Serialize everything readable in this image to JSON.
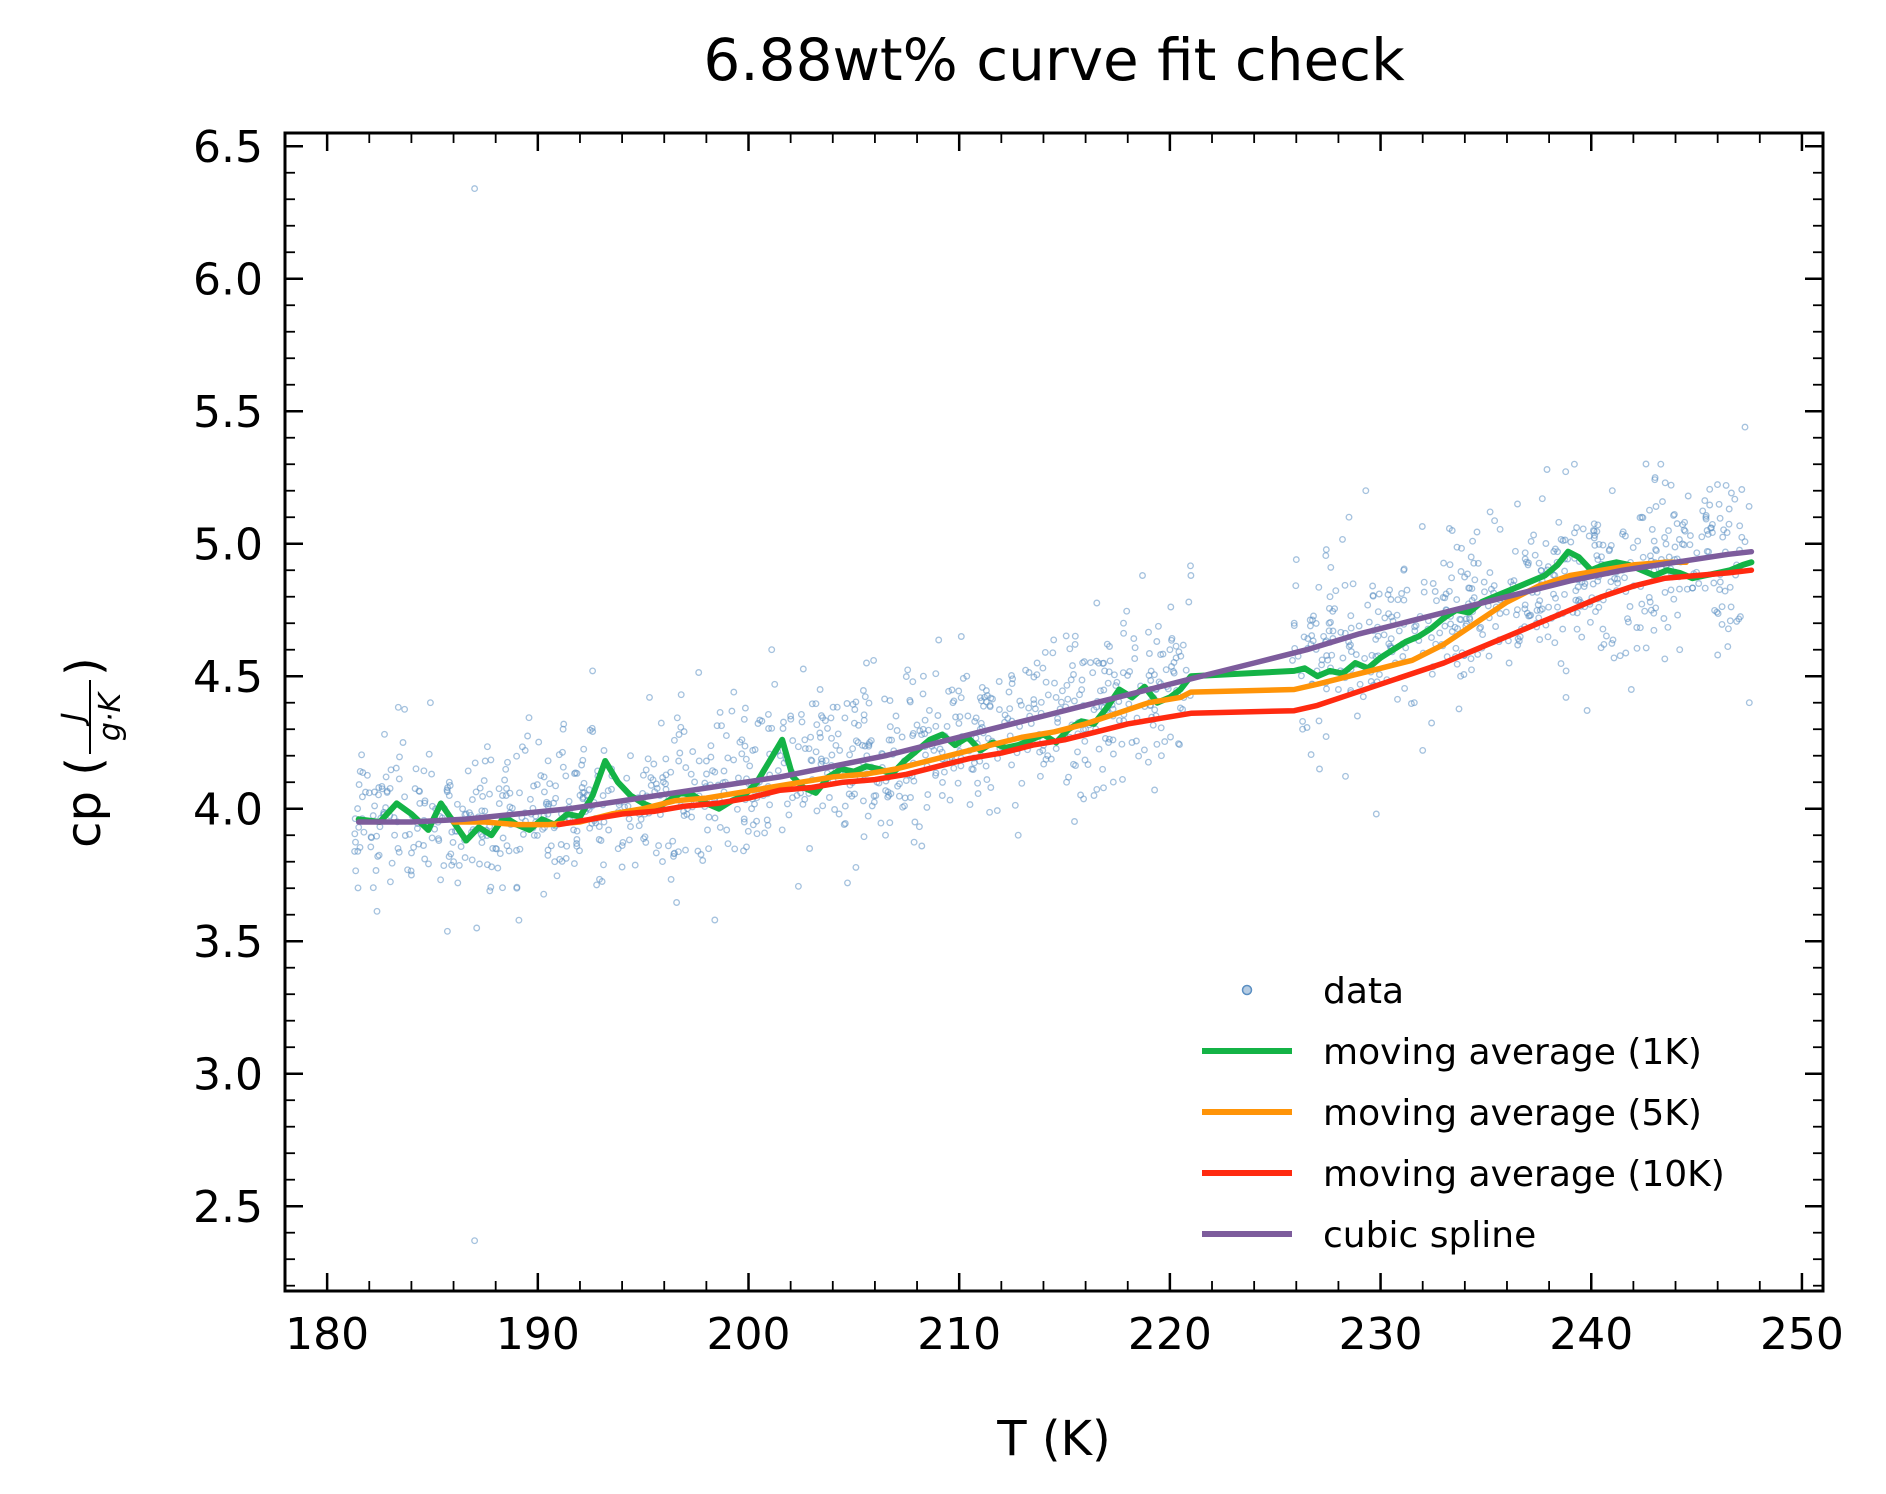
{
  "chart_data": {
    "type": "scatter",
    "title": "6.88wt% curve fit check",
    "xlabel": "T (K)",
    "ylabel": {
      "prefix": "cp (",
      "numerator": "J",
      "denominator": "g·K",
      "suffix": ")"
    },
    "xlim": [
      178,
      251
    ],
    "ylim": [
      2.18,
      6.55
    ],
    "xticks": [
      180,
      190,
      200,
      210,
      220,
      230,
      240,
      250
    ],
    "yticks": [
      2.5,
      3.0,
      3.5,
      4.0,
      4.5,
      5.0,
      5.5,
      6.0,
      6.5
    ],
    "xticklabels": [
      "180",
      "190",
      "200",
      "210",
      "220",
      "230",
      "240",
      "250"
    ],
    "yticklabels": [
      "2.5",
      "3.0",
      "3.5",
      "4.0",
      "4.5",
      "5.0",
      "5.5",
      "6.0",
      "6.5"
    ],
    "grid": false,
    "legend_position": "bottom-right",
    "scatter_series": {
      "name": "data",
      "color": "#5b8fc2",
      "x_range": [
        181.3,
        247.6
      ],
      "gap": [
        221.0,
        225.8
      ],
      "noise_sd": 0.15,
      "points": [
        {
          "x": 181.5,
          "y": 3.93
        },
        {
          "x": 182.0,
          "y": 4.06
        },
        {
          "x": 182.4,
          "y": 3.82
        },
        {
          "x": 182.8,
          "y": 4.12
        },
        {
          "x": 183.2,
          "y": 3.9
        },
        {
          "x": 183.6,
          "y": 4.25
        },
        {
          "x": 184.0,
          "y": 3.75
        },
        {
          "x": 184.4,
          "y": 4.02
        },
        {
          "x": 184.9,
          "y": 4.4
        },
        {
          "x": 185.3,
          "y": 3.88
        },
        {
          "x": 185.8,
          "y": 4.1
        },
        {
          "x": 186.2,
          "y": 3.72
        },
        {
          "x": 186.6,
          "y": 3.98
        },
        {
          "x": 187.0,
          "y": 6.34
        },
        {
          "x": 187.0,
          "y": 2.37
        },
        {
          "x": 187.1,
          "y": 3.55
        },
        {
          "x": 187.5,
          "y": 4.18
        },
        {
          "x": 188.0,
          "y": 3.85
        },
        {
          "x": 188.5,
          "y": 4.05
        },
        {
          "x": 189.0,
          "y": 3.7
        },
        {
          "x": 189.4,
          "y": 4.22
        },
        {
          "x": 189.9,
          "y": 3.95
        },
        {
          "x": 190.3,
          "y": 4.12
        },
        {
          "x": 190.8,
          "y": 3.8
        },
        {
          "x": 191.2,
          "y": 4.3
        },
        {
          "x": 191.7,
          "y": 3.92
        },
        {
          "x": 192.1,
          "y": 4.08
        },
        {
          "x": 192.6,
          "y": 4.52
        },
        {
          "x": 193.0,
          "y": 3.88
        },
        {
          "x": 193.5,
          "y": 4.15
        },
        {
          "x": 194.0,
          "y": 3.78
        },
        {
          "x": 194.4,
          "y": 4.2
        },
        {
          "x": 194.9,
          "y": 3.96
        },
        {
          "x": 195.3,
          "y": 4.42
        },
        {
          "x": 195.8,
          "y": 4.05
        },
        {
          "x": 196.2,
          "y": 3.86
        },
        {
          "x": 196.7,
          "y": 4.28
        },
        {
          "x": 197.1,
          "y": 4.0
        },
        {
          "x": 197.6,
          "y": 3.84
        },
        {
          "x": 198.0,
          "y": 4.18
        },
        {
          "x": 198.4,
          "y": 3.58
        },
        {
          "x": 198.9,
          "y": 4.1
        },
        {
          "x": 199.3,
          "y": 4.44
        },
        {
          "x": 199.8,
          "y": 3.95
        },
        {
          "x": 200.2,
          "y": 4.22
        },
        {
          "x": 200.7,
          "y": 4.05
        },
        {
          "x": 201.1,
          "y": 4.6
        },
        {
          "x": 201.6,
          "y": 3.92
        },
        {
          "x": 202.0,
          "y": 4.35
        },
        {
          "x": 202.5,
          "y": 4.08
        },
        {
          "x": 202.9,
          "y": 3.85
        },
        {
          "x": 203.4,
          "y": 4.45
        },
        {
          "x": 203.8,
          "y": 4.12
        },
        {
          "x": 204.3,
          "y": 3.98
        },
        {
          "x": 204.7,
          "y": 3.72
        },
        {
          "x": 205.2,
          "y": 4.25
        },
        {
          "x": 205.6,
          "y": 4.55
        },
        {
          "x": 206.1,
          "y": 4.1
        },
        {
          "x": 206.5,
          "y": 3.9
        },
        {
          "x": 207.0,
          "y": 4.35
        },
        {
          "x": 207.4,
          "y": 4.18
        },
        {
          "x": 207.9,
          "y": 3.95
        },
        {
          "x": 208.3,
          "y": 4.5
        },
        {
          "x": 208.8,
          "y": 4.22
        },
        {
          "x": 209.2,
          "y": 4.05
        },
        {
          "x": 209.7,
          "y": 4.4
        },
        {
          "x": 210.1,
          "y": 4.65
        },
        {
          "x": 210.6,
          "y": 4.15
        },
        {
          "x": 211.0,
          "y": 4.3
        },
        {
          "x": 211.5,
          "y": 4.08
        },
        {
          "x": 211.9,
          "y": 4.48
        },
        {
          "x": 212.4,
          "y": 4.22
        },
        {
          "x": 212.8,
          "y": 3.9
        },
        {
          "x": 213.3,
          "y": 4.38
        },
        {
          "x": 213.7,
          "y": 4.55
        },
        {
          "x": 214.2,
          "y": 4.2
        },
        {
          "x": 214.6,
          "y": 4.42
        },
        {
          "x": 215.1,
          "y": 4.1
        },
        {
          "x": 215.5,
          "y": 4.62
        },
        {
          "x": 216.0,
          "y": 4.3
        },
        {
          "x": 216.4,
          "y": 4.05
        },
        {
          "x": 216.9,
          "y": 4.52
        },
        {
          "x": 217.3,
          "y": 4.35
        },
        {
          "x": 217.8,
          "y": 4.7
        },
        {
          "x": 218.2,
          "y": 4.25
        },
        {
          "x": 218.7,
          "y": 4.88
        },
        {
          "x": 219.1,
          "y": 4.45
        },
        {
          "x": 219.6,
          "y": 4.2
        },
        {
          "x": 220.0,
          "y": 4.6
        },
        {
          "x": 220.5,
          "y": 4.38
        },
        {
          "x": 220.9,
          "y": 4.78
        },
        {
          "x": 221.0,
          "y": 4.88
        },
        {
          "x": 225.9,
          "y": 4.7
        },
        {
          "x": 226.0,
          "y": 4.94
        },
        {
          "x": 226.3,
          "y": 4.3
        },
        {
          "x": 226.7,
          "y": 4.62
        },
        {
          "x": 227.1,
          "y": 4.15
        },
        {
          "x": 227.6,
          "y": 4.8
        },
        {
          "x": 228.0,
          "y": 4.45
        },
        {
          "x": 228.5,
          "y": 5.1
        },
        {
          "x": 228.9,
          "y": 4.35
        },
        {
          "x": 229.3,
          "y": 5.2
        },
        {
          "x": 229.8,
          "y": 3.98
        },
        {
          "x": 230.2,
          "y": 4.72
        },
        {
          "x": 230.7,
          "y": 4.55
        },
        {
          "x": 231.1,
          "y": 4.9
        },
        {
          "x": 231.6,
          "y": 4.4
        },
        {
          "x": 232.0,
          "y": 4.22
        },
        {
          "x": 232.5,
          "y": 4.85
        },
        {
          "x": 232.9,
          "y": 4.62
        },
        {
          "x": 233.4,
          "y": 5.05
        },
        {
          "x": 233.8,
          "y": 4.5
        },
        {
          "x": 234.3,
          "y": 4.95
        },
        {
          "x": 234.7,
          "y": 4.68
        },
        {
          "x": 235.2,
          "y": 5.12
        },
        {
          "x": 235.6,
          "y": 4.8
        },
        {
          "x": 236.1,
          "y": 4.55
        },
        {
          "x": 236.5,
          "y": 5.15
        },
        {
          "x": 237.0,
          "y": 4.92
        },
        {
          "x": 237.4,
          "y": 4.7
        },
        {
          "x": 237.9,
          "y": 5.28
        },
        {
          "x": 238.3,
          "y": 4.98
        },
        {
          "x": 238.8,
          "y": 4.42
        },
        {
          "x": 239.2,
          "y": 5.3
        },
        {
          "x": 239.7,
          "y": 4.85
        },
        {
          "x": 240.1,
          "y": 5.05
        },
        {
          "x": 240.6,
          "y": 4.62
        },
        {
          "x": 241.0,
          "y": 5.2
        },
        {
          "x": 241.5,
          "y": 4.9
        },
        {
          "x": 241.9,
          "y": 4.45
        },
        {
          "x": 242.4,
          "y": 5.1
        },
        {
          "x": 242.8,
          "y": 4.78
        },
        {
          "x": 243.3,
          "y": 5.3
        },
        {
          "x": 243.7,
          "y": 4.95
        },
        {
          "x": 244.2,
          "y": 4.6
        },
        {
          "x": 244.6,
          "y": 5.18
        },
        {
          "x": 245.1,
          "y": 4.85
        },
        {
          "x": 245.5,
          "y": 5.05
        },
        {
          "x": 246.0,
          "y": 4.58
        },
        {
          "x": 246.4,
          "y": 5.22
        },
        {
          "x": 246.9,
          "y": 4.92
        },
        {
          "x": 247.3,
          "y": 5.44
        },
        {
          "x": 247.5,
          "y": 4.4
        }
      ]
    },
    "series": [
      {
        "name": "moving average (1K)",
        "color": "#14b346",
        "x": [
          181.5,
          182.5,
          183.3,
          184.0,
          184.8,
          185.4,
          186.0,
          186.6,
          187.2,
          187.8,
          188.4,
          189.0,
          189.6,
          190.2,
          190.8,
          191.4,
          192.0,
          192.6,
          193.2,
          193.8,
          194.4,
          195.0,
          195.6,
          196.2,
          196.8,
          197.4,
          198.0,
          198.6,
          199.2,
          199.8,
          200.4,
          201.0,
          201.6,
          202.1,
          202.6,
          203.2,
          203.8,
          204.4,
          205.0,
          205.6,
          206.2,
          206.8,
          207.4,
          208.0,
          208.6,
          209.2,
          209.8,
          210.4,
          211.0,
          211.6,
          212.2,
          212.8,
          213.4,
          214.0,
          214.6,
          215.2,
          215.8,
          216.4,
          217.0,
          217.6,
          218.2,
          218.8,
          219.4,
          220.0,
          220.5,
          221.0,
          225.9,
          226.4,
          227.0,
          227.6,
          228.2,
          228.8,
          229.4,
          230.0,
          230.6,
          231.2,
          231.8,
          232.4,
          233.0,
          233.6,
          234.2,
          234.8,
          235.4,
          236.0,
          236.6,
          237.2,
          237.8,
          238.4,
          238.9,
          239.4,
          240.0,
          240.6,
          241.2,
          241.8,
          242.4,
          243.0,
          243.6,
          244.2,
          244.8,
          245.4,
          246.0,
          246.6,
          247.2,
          247.6
        ],
        "y": [
          3.96,
          3.95,
          4.02,
          3.98,
          3.92,
          4.02,
          3.95,
          3.88,
          3.93,
          3.9,
          3.97,
          3.94,
          3.92,
          3.96,
          3.94,
          3.98,
          3.97,
          4.05,
          4.18,
          4.1,
          4.05,
          4.02,
          4.0,
          4.03,
          4.06,
          4.05,
          4.02,
          4.0,
          4.03,
          4.05,
          4.1,
          4.18,
          4.26,
          4.12,
          4.08,
          4.06,
          4.12,
          4.15,
          4.14,
          4.16,
          4.15,
          4.13,
          4.18,
          4.22,
          4.26,
          4.28,
          4.24,
          4.27,
          4.22,
          4.25,
          4.23,
          4.24,
          4.26,
          4.28,
          4.25,
          4.3,
          4.33,
          4.32,
          4.38,
          4.45,
          4.42,
          4.46,
          4.4,
          4.42,
          4.45,
          4.5,
          4.52,
          4.53,
          4.5,
          4.52,
          4.51,
          4.55,
          4.53,
          4.57,
          4.6,
          4.63,
          4.65,
          4.68,
          4.72,
          4.75,
          4.74,
          4.78,
          4.8,
          4.82,
          4.84,
          4.86,
          4.88,
          4.92,
          4.97,
          4.95,
          4.9,
          4.92,
          4.93,
          4.92,
          4.9,
          4.88,
          4.9,
          4.89,
          4.87,
          4.88,
          4.89,
          4.9,
          4.92,
          4.93
        ]
      },
      {
        "name": "moving average (5K)",
        "color": "#ff9408",
        "x": [
          186.0,
          187.5,
          189.0,
          190.5,
          192.0,
          193.5,
          195.0,
          196.5,
          198.0,
          199.5,
          201.0,
          202.5,
          204.0,
          205.5,
          207.0,
          208.5,
          210.0,
          211.5,
          213.0,
          214.5,
          216.0,
          217.5,
          219.0,
          220.5,
          221.0,
          225.9,
          227.0,
          228.5,
          230.0,
          231.5,
          233.0,
          234.5,
          236.0,
          237.5,
          239.0,
          240.5,
          242.0,
          243.5,
          244.5
        ],
        "y": [
          3.95,
          3.95,
          3.94,
          3.94,
          3.95,
          3.98,
          4.0,
          4.03,
          4.04,
          4.06,
          4.08,
          4.1,
          4.12,
          4.13,
          4.15,
          4.18,
          4.21,
          4.24,
          4.27,
          4.29,
          4.32,
          4.36,
          4.4,
          4.42,
          4.44,
          4.45,
          4.47,
          4.5,
          4.53,
          4.56,
          4.62,
          4.7,
          4.78,
          4.84,
          4.88,
          4.9,
          4.92,
          4.93,
          4.93
        ]
      },
      {
        "name": "moving average (10K)",
        "color": "#ff2a10",
        "x": [
          191.0,
          192.5,
          194.0,
          195.5,
          197.0,
          198.5,
          200.0,
          201.5,
          203.0,
          204.5,
          206.0,
          207.5,
          209.0,
          210.5,
          212.0,
          213.5,
          215.0,
          216.5,
          218.0,
          219.5,
          221.0,
          225.9,
          227.0,
          228.5,
          230.0,
          231.5,
          233.0,
          234.5,
          236.0,
          237.5,
          239.0,
          240.5,
          242.0,
          243.5,
          245.0,
          246.5,
          247.6
        ],
        "y": [
          3.94,
          3.96,
          3.98,
          3.99,
          4.01,
          4.02,
          4.04,
          4.07,
          4.08,
          4.1,
          4.11,
          4.13,
          4.16,
          4.19,
          4.21,
          4.24,
          4.26,
          4.29,
          4.32,
          4.34,
          4.36,
          4.37,
          4.39,
          4.43,
          4.47,
          4.51,
          4.55,
          4.6,
          4.65,
          4.7,
          4.75,
          4.8,
          4.84,
          4.87,
          4.88,
          4.89,
          4.9
        ]
      },
      {
        "name": "cubic spline",
        "color": "#7d5c9c",
        "x": [
          181.5,
          184.0,
          186.5,
          189.0,
          191.5,
          194.0,
          196.5,
          199.0,
          201.5,
          204.0,
          206.5,
          209.0,
          211.5,
          214.0,
          216.5,
          219.0,
          221.5,
          224.0,
          226.5,
          229.0,
          231.5,
          234.0,
          236.5,
          239.0,
          241.5,
          244.0,
          246.5,
          247.6
        ],
        "y": [
          3.95,
          3.95,
          3.96,
          3.98,
          4.0,
          4.03,
          4.06,
          4.09,
          4.12,
          4.16,
          4.2,
          4.25,
          4.3,
          4.35,
          4.4,
          4.45,
          4.5,
          4.55,
          4.6,
          4.66,
          4.71,
          4.76,
          4.81,
          4.86,
          4.9,
          4.93,
          4.96,
          4.97
        ]
      }
    ]
  }
}
